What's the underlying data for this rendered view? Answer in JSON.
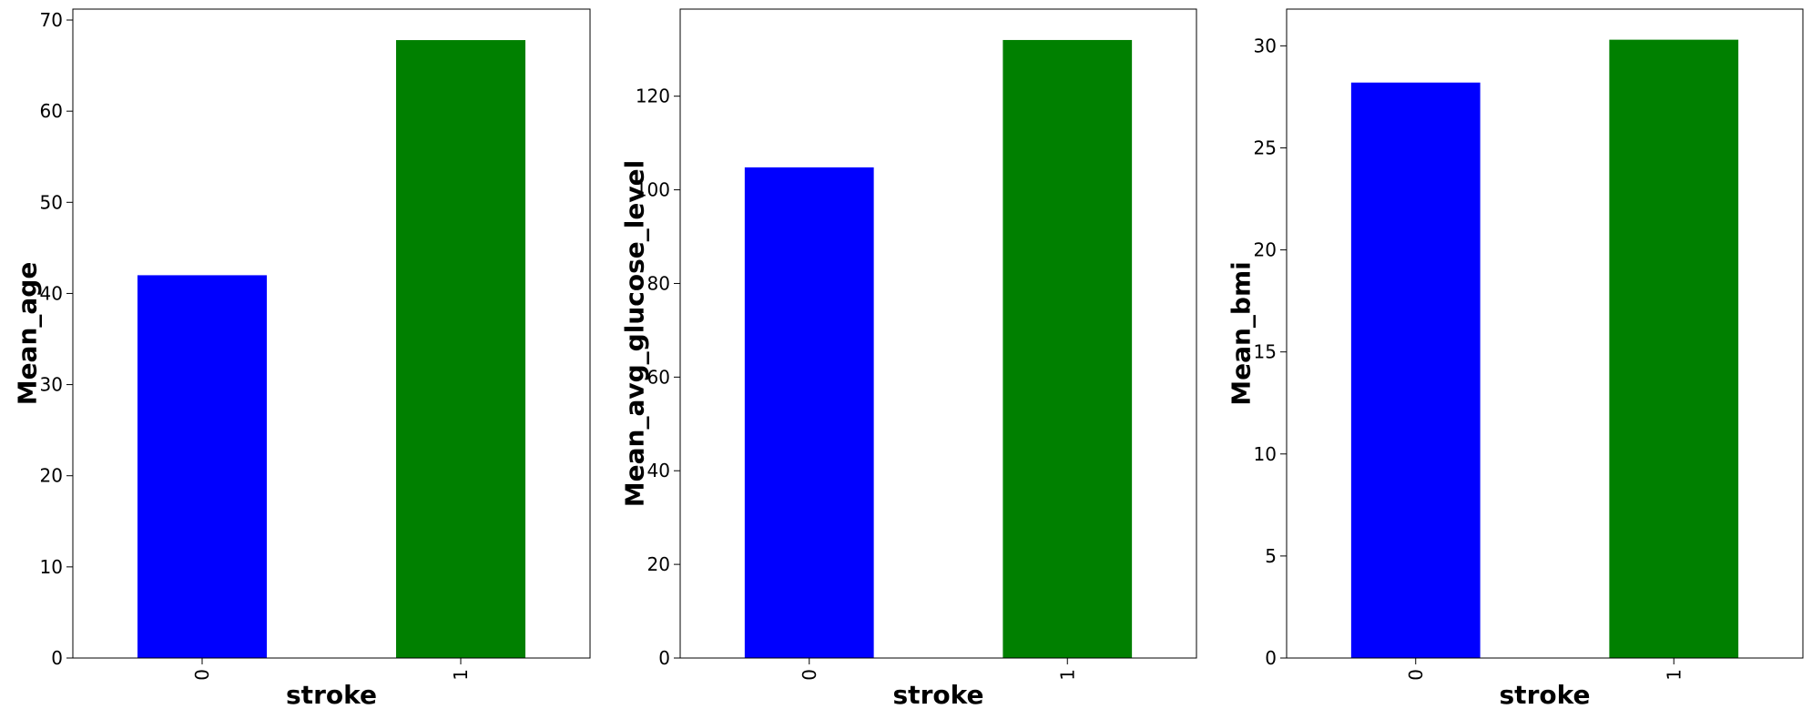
{
  "chart_data": [
    {
      "type": "bar",
      "categories": [
        "0",
        "1"
      ],
      "values": [
        42.0,
        67.8
      ],
      "bar_colors": [
        "#0000ff",
        "#008000"
      ],
      "xlabel": "stroke",
      "ylabel": "Mean_age",
      "ylim": [
        0,
        71.2
      ],
      "yticks": [
        0,
        10,
        20,
        30,
        40,
        50,
        60,
        70
      ],
      "grid": false
    },
    {
      "type": "bar",
      "categories": [
        "0",
        "1"
      ],
      "values": [
        104.8,
        132.0
      ],
      "bar_colors": [
        "#0000ff",
        "#008000"
      ],
      "xlabel": "stroke",
      "ylabel": "Mean_avg_glucose_level",
      "ylim": [
        0,
        138.6
      ],
      "yticks": [
        0,
        20,
        40,
        60,
        80,
        100,
        120
      ],
      "grid": false
    },
    {
      "type": "bar",
      "categories": [
        "0",
        "1"
      ],
      "values": [
        28.2,
        30.3
      ],
      "bar_colors": [
        "#0000ff",
        "#008000"
      ],
      "xlabel": "stroke",
      "ylabel": "Mean_bmi",
      "ylim": [
        0,
        31.8
      ],
      "yticks": [
        0,
        5,
        10,
        15,
        20,
        25,
        30
      ],
      "grid": false
    }
  ]
}
